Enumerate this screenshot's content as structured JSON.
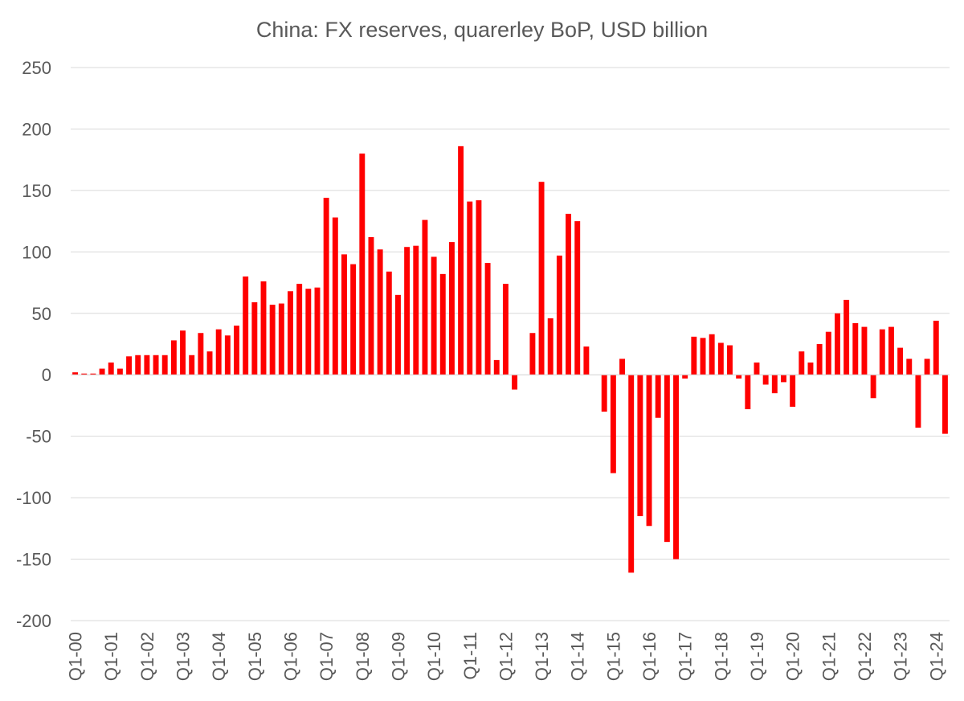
{
  "chart_data": {
    "type": "bar",
    "title": "China: FX reserves, quarerley BoP, USD billion",
    "xlabel": "",
    "ylabel": "",
    "ylim": [
      -200,
      250
    ],
    "yticks": [
      250,
      200,
      150,
      100,
      50,
      0,
      -50,
      -100,
      -150,
      -200
    ],
    "grid": true,
    "legend": "none",
    "bar_color": "#FF0000",
    "categories": [
      "Q1-00",
      "Q2-00",
      "Q3-00",
      "Q4-00",
      "Q1-01",
      "Q2-01",
      "Q3-01",
      "Q4-01",
      "Q1-02",
      "Q2-02",
      "Q3-02",
      "Q4-02",
      "Q1-03",
      "Q2-03",
      "Q3-03",
      "Q4-03",
      "Q1-04",
      "Q2-04",
      "Q3-04",
      "Q4-04",
      "Q1-05",
      "Q2-05",
      "Q3-05",
      "Q4-05",
      "Q1-06",
      "Q2-06",
      "Q3-06",
      "Q4-06",
      "Q1-07",
      "Q2-07",
      "Q3-07",
      "Q4-07",
      "Q1-08",
      "Q2-08",
      "Q3-08",
      "Q4-08",
      "Q1-09",
      "Q2-09",
      "Q3-09",
      "Q4-09",
      "Q1-10",
      "Q2-10",
      "Q3-10",
      "Q4-10",
      "Q1-11",
      "Q2-11",
      "Q3-11",
      "Q4-11",
      "Q1-12",
      "Q2-12",
      "Q3-12",
      "Q4-12",
      "Q1-13",
      "Q2-13",
      "Q3-13",
      "Q4-13",
      "Q1-14",
      "Q2-14",
      "Q3-14",
      "Q4-14",
      "Q1-15",
      "Q2-15",
      "Q3-15",
      "Q4-15",
      "Q1-16",
      "Q2-16",
      "Q3-16",
      "Q4-16",
      "Q1-17",
      "Q2-17",
      "Q3-17",
      "Q4-17",
      "Q1-18",
      "Q2-18",
      "Q3-18",
      "Q4-18",
      "Q1-19",
      "Q2-19",
      "Q3-19",
      "Q4-19",
      "Q1-20",
      "Q2-20",
      "Q3-20",
      "Q4-20",
      "Q1-21",
      "Q2-21",
      "Q3-21",
      "Q4-21",
      "Q1-22",
      "Q2-22",
      "Q3-22",
      "Q4-22",
      "Q1-23",
      "Q2-23",
      "Q3-23",
      "Q4-23",
      "Q1-24",
      "Q2-24"
    ],
    "tick_labels": [
      "Q1-00",
      "Q1-01",
      "Q1-02",
      "Q1-03",
      "Q1-04",
      "Q1-05",
      "Q1-06",
      "Q1-07",
      "Q1-08",
      "Q1-09",
      "Q1-10",
      "Q1-11",
      "Q1-12",
      "Q1-13",
      "Q1-14",
      "Q1-15",
      "Q1-16",
      "Q1-17",
      "Q1-18",
      "Q1-19",
      "Q1-20",
      "Q1-21",
      "Q1-22",
      "Q1-23",
      "Q1-24"
    ],
    "series": [
      {
        "name": "FX reserves",
        "values": [
          2,
          1,
          1,
          5,
          10,
          5,
          15,
          16,
          16,
          16,
          16,
          28,
          36,
          16,
          34,
          19,
          37,
          32,
          40,
          80,
          59,
          76,
          57,
          58,
          68,
          74,
          70,
          71,
          144,
          128,
          98,
          90,
          180,
          112,
          102,
          84,
          65,
          104,
          105,
          126,
          96,
          82,
          108,
          186,
          141,
          142,
          91,
          12,
          74,
          -12,
          0,
          34,
          157,
          46,
          97,
          131,
          125,
          23,
          0,
          -30,
          -80,
          13,
          -161,
          -115,
          -123,
          -35,
          -136,
          -150,
          -3,
          31,
          30,
          33,
          26,
          24,
          -3,
          -28,
          10,
          -8,
          -15,
          -6,
          -26,
          19,
          10,
          25,
          35,
          50,
          61,
          42,
          39,
          -19,
          37,
          39,
          22,
          13,
          -43,
          13,
          44,
          -48
        ]
      }
    ]
  }
}
